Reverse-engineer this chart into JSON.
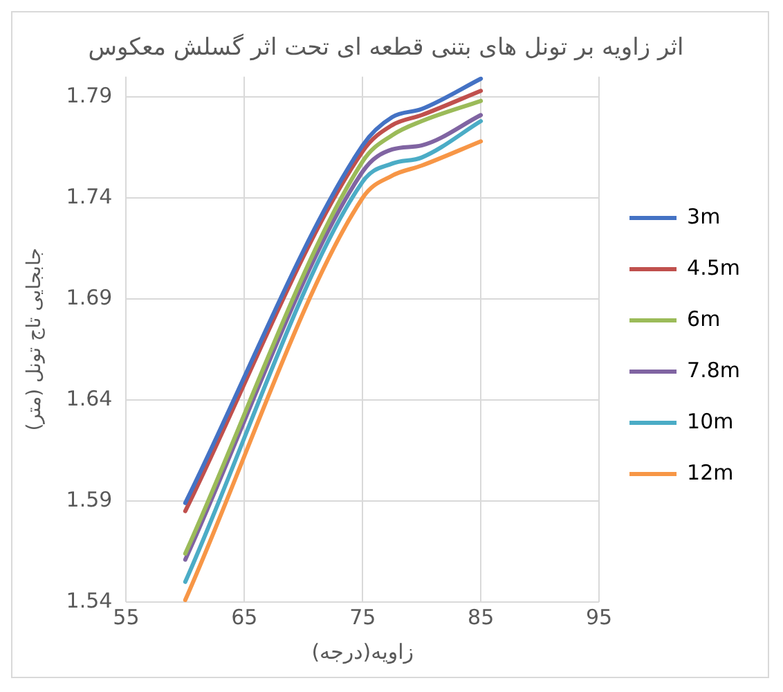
{
  "chart_data": {
    "type": "line",
    "title": "اثر زاویه بر تونل های بتنی قطعه ای تحت اثر گسلش معکوس",
    "xlabel": "زاویه(درجه)",
    "ylabel": "جابجایی تاج تونل (متر)",
    "x": [
      60,
      75,
      77.5,
      80,
      85
    ],
    "xlim": [
      55,
      95
    ],
    "xticks": [
      55,
      65,
      75,
      85,
      95
    ],
    "ylim": [
      1.54,
      1.8
    ],
    "yticks": [
      1.54,
      1.59,
      1.64,
      1.69,
      1.74,
      1.79
    ],
    "grid": true,
    "legend": "right",
    "marker": "none",
    "line_style": "solid",
    "series": [
      {
        "name": "3m",
        "color": "#4472c4",
        "values": [
          1.589,
          1.766,
          1.78,
          1.784,
          1.799
        ]
      },
      {
        "name": "4.5m",
        "color": "#c0504d",
        "values": [
          1.585,
          1.763,
          1.776,
          1.781,
          1.793
        ]
      },
      {
        "name": "6m",
        "color": "#9bbb59",
        "values": [
          1.564,
          1.758,
          1.771,
          1.778,
          1.788
        ]
      },
      {
        "name": "7.8m",
        "color": "#8064a2",
        "values": [
          1.561,
          1.753,
          1.764,
          1.766,
          1.781
        ]
      },
      {
        "name": "10m",
        "color": "#4bacc6",
        "values": [
          1.55,
          1.748,
          1.757,
          1.76,
          1.778
        ]
      },
      {
        "name": "12m",
        "color": "#f79646",
        "values": [
          1.541,
          1.74,
          1.751,
          1.756,
          1.768
        ]
      }
    ]
  }
}
